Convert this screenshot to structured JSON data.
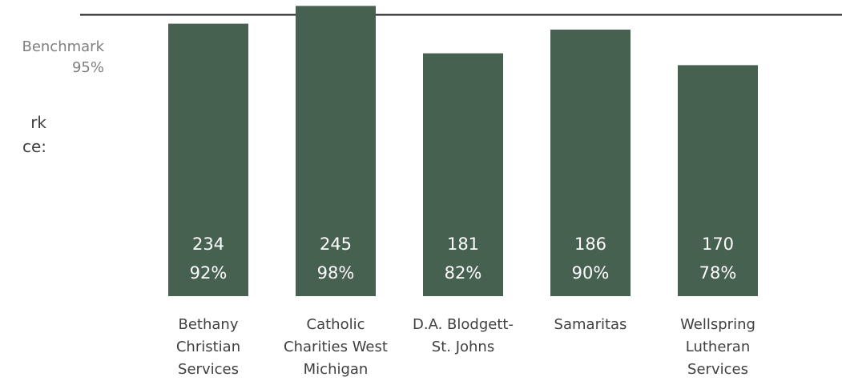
{
  "benchmark": {
    "label_line1": "Benchmark",
    "label_line2": "95%",
    "value": 95
  },
  "clipped_text": {
    "line1": "rk",
    "line2": "ce:"
  },
  "colors": {
    "bar": "#476151",
    "bar_text": "#ffffff",
    "benchmark_line": "#1a1a1a",
    "axis_text": "#404040"
  },
  "chart_data": {
    "type": "bar",
    "title": "",
    "xlabel": "",
    "ylabel": "",
    "ylim": [
      0,
      100
    ],
    "benchmark": 95,
    "categories": [
      "Bethany Christian Services",
      "Catholic Charities West Michigan",
      "D.A. Blodgett- St. Johns",
      "Samaritas",
      "Wellspring Lutheran Services"
    ],
    "category_lines": [
      [
        "Bethany",
        "Christian",
        "Services"
      ],
      [
        "Catholic",
        "Charities West",
        "Michigan"
      ],
      [
        "D.A. Blodgett-",
        "St. Johns"
      ],
      [
        "Samaritas"
      ],
      [
        "Wellspring",
        "Lutheran",
        "Services"
      ]
    ],
    "counts": [
      234,
      245,
      181,
      186,
      170
    ],
    "values": [
      92,
      98,
      82,
      90,
      78
    ],
    "value_labels": [
      "92%",
      "98%",
      "82%",
      "90%",
      "78%"
    ],
    "count_labels": [
      "234",
      "245",
      "181",
      "186",
      "170"
    ]
  }
}
